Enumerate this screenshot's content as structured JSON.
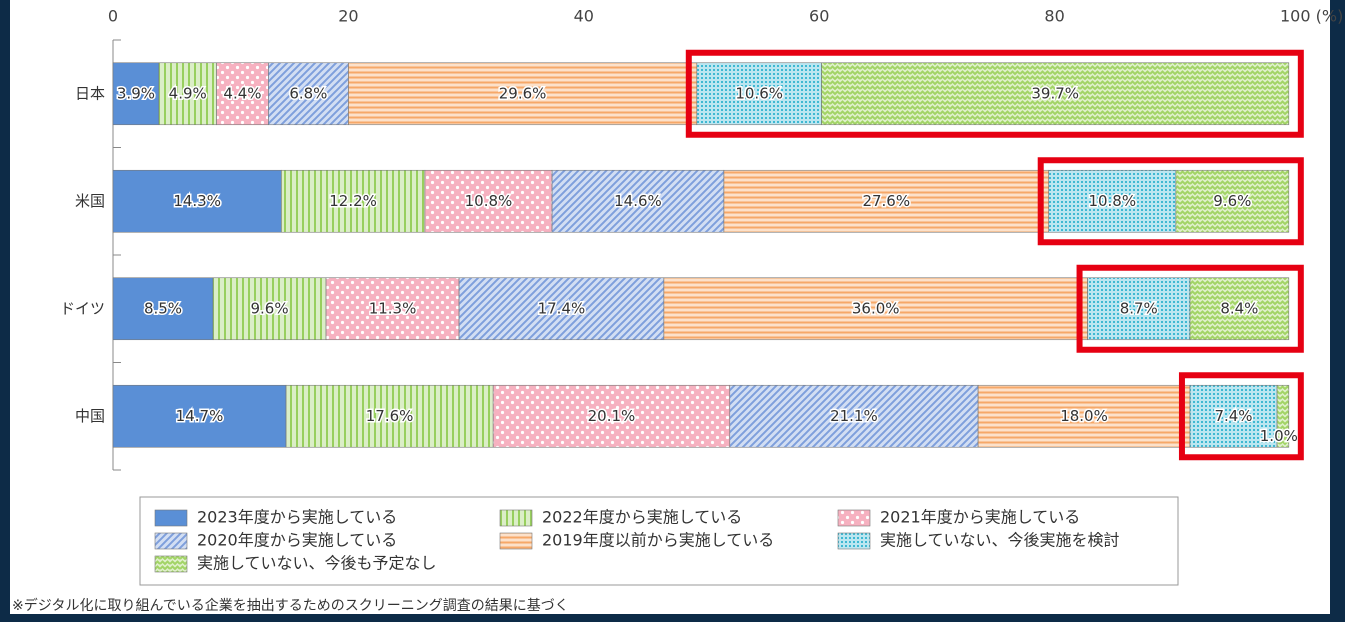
{
  "chart_data": {
    "type": "stacked-barh",
    "categories": [
      "日本",
      "米国",
      "ドイツ",
      "中国"
    ],
    "series": [
      {
        "name": "2023年度から実施している",
        "color": "#5a8fd6",
        "pattern": "solid",
        "values": [
          3.9,
          14.3,
          8.5,
          14.7
        ],
        "value_labels": [
          "3.9%",
          "14.3%",
          "8.5%",
          "14.7%"
        ]
      },
      {
        "name": "2022年度から実施している",
        "color": "#98cf5e",
        "pattern": "vertical",
        "values": [
          4.9,
          12.2,
          9.6,
          17.6
        ],
        "value_labels": [
          "4.9%",
          "12.2%",
          "9.6%",
          "17.6%"
        ]
      },
      {
        "name": "2021年度から実施している",
        "color": "#f5a9ba",
        "pattern": "dots",
        "values": [
          4.4,
          10.8,
          11.3,
          20.1
        ],
        "value_labels": [
          "4.4%",
          "10.8%",
          "11.3%",
          "20.1%"
        ]
      },
      {
        "name": "2020年度から実施している",
        "color": "#7e9fdc",
        "pattern": "diagonal",
        "values": [
          6.8,
          14.6,
          17.4,
          21.1
        ],
        "value_labels": [
          "6.8%",
          "14.6%",
          "17.4%",
          "21.1%"
        ]
      },
      {
        "name": "2019年度以前から実施している",
        "color": "#f6a868",
        "pattern": "horizontal",
        "values": [
          29.6,
          27.6,
          36.0,
          18.0
        ],
        "value_labels": [
          "29.6%",
          "27.6%",
          "36.0%",
          "18.0%"
        ]
      },
      {
        "name": "実施していない、今後実施を検討",
        "color": "#3fb8d2",
        "pattern": "grid",
        "values": [
          10.6,
          10.8,
          8.7,
          7.4
        ],
        "value_labels": [
          "10.6%",
          "10.8%",
          "8.7%",
          "7.4%"
        ]
      },
      {
        "name": "実施していない、今後も予定なし",
        "color": "#a2d466",
        "pattern": "zigzag",
        "values": [
          39.7,
          9.6,
          8.4,
          1.0
        ],
        "value_labels": [
          "39.7%",
          "9.6%",
          "8.4%",
          "1.0%"
        ]
      }
    ],
    "xlim": [
      0,
      100
    ],
    "xticks": [
      0,
      20,
      40,
      60,
      80,
      {
        "value": 100,
        "label": "100 (%)"
      }
    ],
    "grid": false,
    "footnote": "※デジタル化に取り組んでいる企業を抽出するためのスクリーニング調査の結果に基づく"
  }
}
